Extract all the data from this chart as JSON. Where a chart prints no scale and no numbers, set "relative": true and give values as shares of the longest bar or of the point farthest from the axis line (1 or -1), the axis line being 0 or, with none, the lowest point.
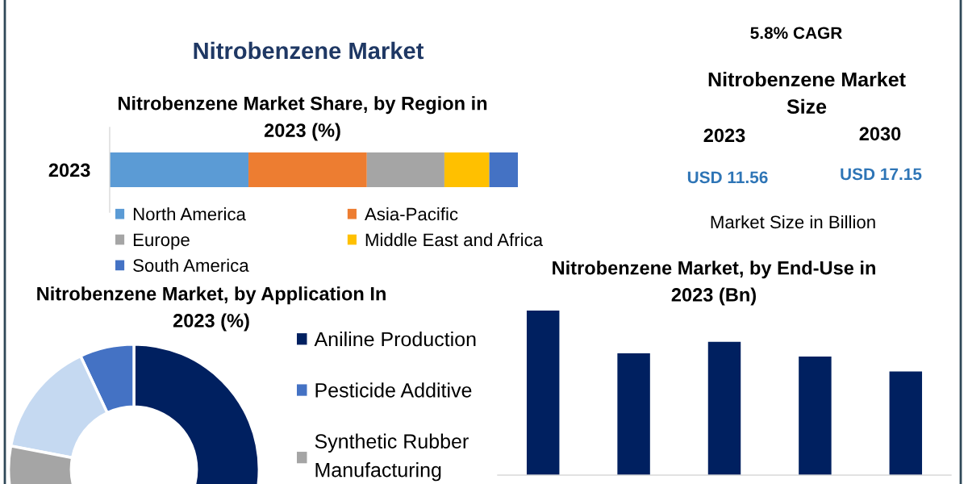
{
  "chart_data": [
    {
      "type": "bar",
      "title": "Nitrobenzene Market",
      "subtitle": "Nitrobenzene Market Share, by Region in 2023 (%)",
      "orientation": "horizontal",
      "stacked": true,
      "relative": true,
      "categories": [
        "2023"
      ],
      "series": [
        {
          "name": "North America",
          "color": "#5b9bd5",
          "values": [
            0.34
          ]
        },
        {
          "name": "Asia-Pacific",
          "color": "#ed7d31",
          "values": [
            0.29
          ]
        },
        {
          "name": "Europe",
          "color": "#a5a5a5",
          "values": [
            0.19
          ]
        },
        {
          "name": "Middle East and Africa",
          "color": "#ffc000",
          "values": [
            0.11
          ]
        },
        {
          "name": "South America",
          "color": "#4472c4",
          "values": [
            0.07
          ]
        }
      ],
      "legend": "bottom"
    },
    {
      "type": "other",
      "title": "Nitrobenzene Market Size",
      "annotations": [
        "5.8% CAGR",
        "2023",
        "2030",
        "USD 11.56",
        "USD 17.15",
        "Market Size in Billion"
      ]
    },
    {
      "type": "donut",
      "title": "Nitrobenzene Market, by Application In 2023 (%)",
      "categories": [
        "Aniline Production",
        "Pesticide Additive",
        null,
        "Synthetic Rubber Manufacturing"
      ],
      "values": [
        50,
        7,
        15,
        28
      ],
      "colors": [
        "#002060",
        "#4472c4",
        "#c5d9f1",
        "#a5a5a5"
      ],
      "legend": "right"
    },
    {
      "type": "bar",
      "title": "Nitrobenzene Market, by End-Use in 2023 (Bn)",
      "categories": [
        null,
        null,
        null,
        null,
        null
      ],
      "values": [
        1,
        0.74,
        0.81,
        0.72,
        0.63
      ],
      "color": "#002060",
      "relative": true
    }
  ]
}
